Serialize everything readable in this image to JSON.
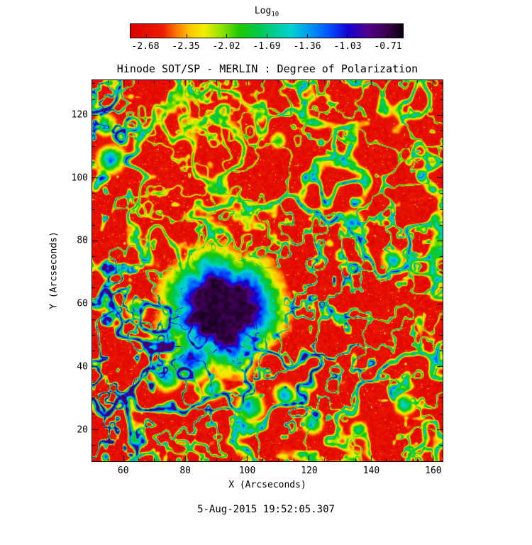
{
  "title": "Hinode SOT/SP - MERLIN : Degree of Polarization",
  "timestamp": "5-Aug-2015 19:52:05.307",
  "colorbar": {
    "label": "Log",
    "label_sub": "10",
    "ticks": [
      "-2.68",
      "-2.35",
      "-2.02",
      "-1.69",
      "-1.36",
      "-1.03",
      "-0.71"
    ]
  },
  "chart_data": {
    "type": "heatmap",
    "title": "Hinode SOT/SP - MERLIN : Degree of Polarization",
    "xlabel": "X (Arcseconds)",
    "ylabel": "Y (Arcseconds)",
    "xlim": [
      50,
      163
    ],
    "ylim": [
      10,
      131
    ],
    "xticks": [
      60,
      80,
      100,
      120,
      140,
      160
    ],
    "yticks": [
      20,
      40,
      60,
      80,
      100,
      120
    ],
    "value_label": "Log10 Degree of Polarization",
    "colorbar_ticks": [
      -2.68,
      -2.35,
      -2.02,
      -1.69,
      -1.36,
      -1.03,
      -0.71
    ],
    "colorbar_range": [
      -2.81,
      -0.58
    ],
    "grid": false,
    "legend": "horizontal-colorbar-top",
    "colormap": [
      {
        "p": 0.0,
        "c": "#dc0000"
      },
      {
        "p": 0.12,
        "c": "#ee1c00"
      },
      {
        "p": 0.17,
        "c": "#ff7a00"
      },
      {
        "p": 0.22,
        "c": "#ffc800"
      },
      {
        "p": 0.27,
        "c": "#f2ee00"
      },
      {
        "p": 0.33,
        "c": "#96e400"
      },
      {
        "p": 0.4,
        "c": "#1ec800"
      },
      {
        "p": 0.47,
        "c": "#00c84b"
      },
      {
        "p": 0.53,
        "c": "#00cd96"
      },
      {
        "p": 0.59,
        "c": "#00d2d2"
      },
      {
        "p": 0.66,
        "c": "#0096f0"
      },
      {
        "p": 0.73,
        "c": "#0050ff"
      },
      {
        "p": 0.8,
        "c": "#1400d2"
      },
      {
        "p": 0.87,
        "c": "#50008c"
      },
      {
        "p": 0.94,
        "c": "#3c0050"
      },
      {
        "p": 1.0,
        "c": "#0a000f"
      }
    ],
    "features_value_scale": "v values are normalized 0-1 positions on the colormap (0 = -2.81, 1 = -0.58 Log10)",
    "features": [
      {
        "type": "sunspot",
        "name": "sunspot",
        "x": 92,
        "y": 58,
        "core_r": 9,
        "outer_r": 19,
        "core_v": 0.96,
        "edge_v": 0.3
      },
      {
        "type": "patch",
        "name": "pore-cluster-sw",
        "x": 82,
        "y": 43,
        "r": 8,
        "v": 0.85
      },
      {
        "type": "patch",
        "name": "pore",
        "x": 74,
        "y": 37,
        "r": 5,
        "v": 0.75
      },
      {
        "type": "patch",
        "name": "pore",
        "x": 89,
        "y": 33,
        "r": 4,
        "v": 0.66
      },
      {
        "type": "patch",
        "name": "network-knot",
        "x": 101,
        "y": 27,
        "r": 5,
        "v": 0.72
      },
      {
        "type": "patch",
        "name": "network-knot",
        "x": 112,
        "y": 31,
        "r": 4,
        "v": 0.68
      },
      {
        "type": "patch",
        "name": "network-knot",
        "x": 121,
        "y": 22,
        "r": 4,
        "v": 0.6
      },
      {
        "type": "patch",
        "name": "network-knot",
        "x": 96,
        "y": 45,
        "r": 5,
        "v": 0.7
      },
      {
        "type": "patch",
        "name": "network-knot-nw",
        "x": 56,
        "y": 106,
        "r": 5,
        "v": 0.72
      },
      {
        "type": "patch",
        "name": "network-knot-nw",
        "x": 54,
        "y": 117,
        "r": 4,
        "v": 0.66
      },
      {
        "type": "patch",
        "name": "network-knot",
        "x": 110,
        "y": 112,
        "r": 3,
        "v": 0.5
      },
      {
        "type": "patch",
        "name": "network-knot-e",
        "x": 134,
        "y": 86,
        "r": 4,
        "v": 0.6
      },
      {
        "type": "patch",
        "name": "network-knot-e",
        "x": 147,
        "y": 74,
        "r": 4,
        "v": 0.62
      },
      {
        "type": "patch",
        "name": "network-knot-se",
        "x": 151,
        "y": 28,
        "r": 4,
        "v": 0.6
      },
      {
        "type": "patch",
        "name": "network-knot-se",
        "x": 136,
        "y": 20,
        "r": 3,
        "v": 0.55
      },
      {
        "type": "patch",
        "name": "network-knot-w",
        "x": 64,
        "y": 58,
        "r": 4,
        "v": 0.55
      },
      {
        "type": "patch",
        "name": "network-knot-n",
        "x": 104,
        "y": 120,
        "r": 3,
        "v": 0.45
      }
    ]
  }
}
